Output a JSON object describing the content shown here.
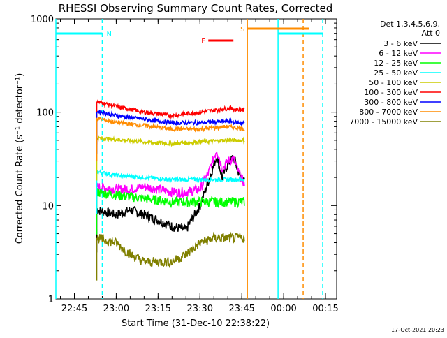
{
  "chart_data": {
    "type": "line",
    "title": "RHESSI Observing Summary Count Rates, Corrected",
    "xlabel": "Start Time (31-Dec-10 22:38:22)",
    "ylabel": "Corrected Count Rate (s⁻¹ detector⁻¹)",
    "yscale": "log",
    "ylim": [
      1,
      1000
    ],
    "yticks": [
      "1",
      "10",
      "100",
      "1000"
    ],
    "xlim": [
      "22:38:22",
      "00:19:00"
    ],
    "xticks": [
      "22:45",
      "23:00",
      "23:15",
      "23:30",
      "23:45",
      "00:00",
      "00:15"
    ],
    "legend_header": [
      "Det 1,3,4,5,6,9,",
      "Att 0"
    ],
    "legend_position": "right",
    "footer": "17-Oct-2021 20:23",
    "flags": [
      {
        "label": "N",
        "color": "#00ffff",
        "bars": [
          [
            "22:38:22",
            "22:55"
          ],
          [
            "23:58",
            "00:00"
          ],
          [
            "00:00",
            "00:14"
          ]
        ]
      },
      {
        "label": "F",
        "color": "#ff0000",
        "bars": [
          [
            "23:33",
            "23:42"
          ]
        ]
      },
      {
        "label": "S",
        "color": "#ff8c00",
        "bars": [
          [
            "23:47",
            "00:09"
          ]
        ]
      }
    ],
    "markers": [
      {
        "time": "22:38:22",
        "color": "#00ffff",
        "style": "solid"
      },
      {
        "time": "22:55",
        "color": "#00ffff",
        "style": "dashed"
      },
      {
        "time": "23:58",
        "color": "#00ffff",
        "style": "solid"
      },
      {
        "time": "00:14",
        "color": "#00ffff",
        "style": "dashed"
      },
      {
        "time": "23:47",
        "color": "#ff8c00",
        "style": "solid"
      },
      {
        "time": "00:07",
        "color": "#ff8c00",
        "style": "dashed"
      }
    ],
    "series": [
      {
        "name": "3 - 6 keV",
        "color": "#000000",
        "x": [
          "22:53",
          "23:00",
          "23:05",
          "23:10",
          "23:15",
          "23:20",
          "23:25",
          "23:30",
          "23:33",
          "23:36",
          "23:38",
          "23:40",
          "23:42",
          "23:44",
          "23:46"
        ],
        "values": [
          9,
          8,
          9,
          8,
          7,
          6,
          5.5,
          10,
          18,
          34,
          20,
          28,
          33,
          22,
          18
        ]
      },
      {
        "name": "6 - 12 keV",
        "color": "#ff00ff",
        "x": [
          "22:53",
          "23:00",
          "23:05",
          "23:10",
          "23:15",
          "23:20",
          "23:25",
          "23:30",
          "23:33",
          "23:36",
          "23:38",
          "23:40",
          "23:42",
          "23:44",
          "23:46"
        ],
        "values": [
          16,
          15,
          15,
          16,
          15,
          14,
          14,
          15,
          22,
          40,
          25,
          30,
          32,
          22,
          17
        ]
      },
      {
        "name": "12 - 25 keV",
        "color": "#00ff00",
        "x": [
          "22:53",
          "23:00",
          "23:10",
          "23:20",
          "23:30",
          "23:40",
          "23:46"
        ],
        "values": [
          14,
          13,
          12,
          11,
          11,
          11,
          11
        ]
      },
      {
        "name": "25 - 50 keV",
        "color": "#00ffff",
        "x": [
          "22:53",
          "23:00",
          "23:10",
          "23:20",
          "23:30",
          "23:40",
          "23:46"
        ],
        "values": [
          23,
          21,
          20,
          19,
          19,
          19,
          19
        ]
      },
      {
        "name": "50 - 100 keV",
        "color": "#cccc00",
        "x": [
          "22:53",
          "23:00",
          "23:10",
          "23:20",
          "23:30",
          "23:40",
          "23:46"
        ],
        "values": [
          53,
          51,
          48,
          46,
          48,
          50,
          50
        ]
      },
      {
        "name": "100 - 300 keV",
        "color": "#ff0000",
        "x": [
          "22:53",
          "23:00",
          "23:10",
          "23:20",
          "23:30",
          "23:40",
          "23:46"
        ],
        "values": [
          130,
          115,
          100,
          92,
          100,
          110,
          105
        ]
      },
      {
        "name": "300 - 800 keV",
        "color": "#0000ff",
        "x": [
          "22:53",
          "23:00",
          "23:10",
          "23:20",
          "23:30",
          "23:40",
          "23:46"
        ],
        "values": [
          103,
          92,
          84,
          77,
          77,
          80,
          76
        ]
      },
      {
        "name": "800 - 7000 keV",
        "color": "#ff8c00",
        "x": [
          "22:53",
          "23:00",
          "23:10",
          "23:20",
          "23:30",
          "23:40",
          "23:46"
        ],
        "values": [
          86,
          78,
          72,
          66,
          66,
          70,
          66
        ]
      },
      {
        "name": "7000 - 15000 keV",
        "color": "#808000",
        "x": [
          "22:53",
          "23:00",
          "23:05",
          "23:10",
          "23:15",
          "23:20",
          "23:25",
          "23:30",
          "23:35",
          "23:40",
          "23:46"
        ],
        "values": [
          4.5,
          4,
          3,
          2.5,
          2.5,
          2.5,
          3,
          4,
          4.5,
          4.5,
          4.5
        ]
      }
    ]
  }
}
